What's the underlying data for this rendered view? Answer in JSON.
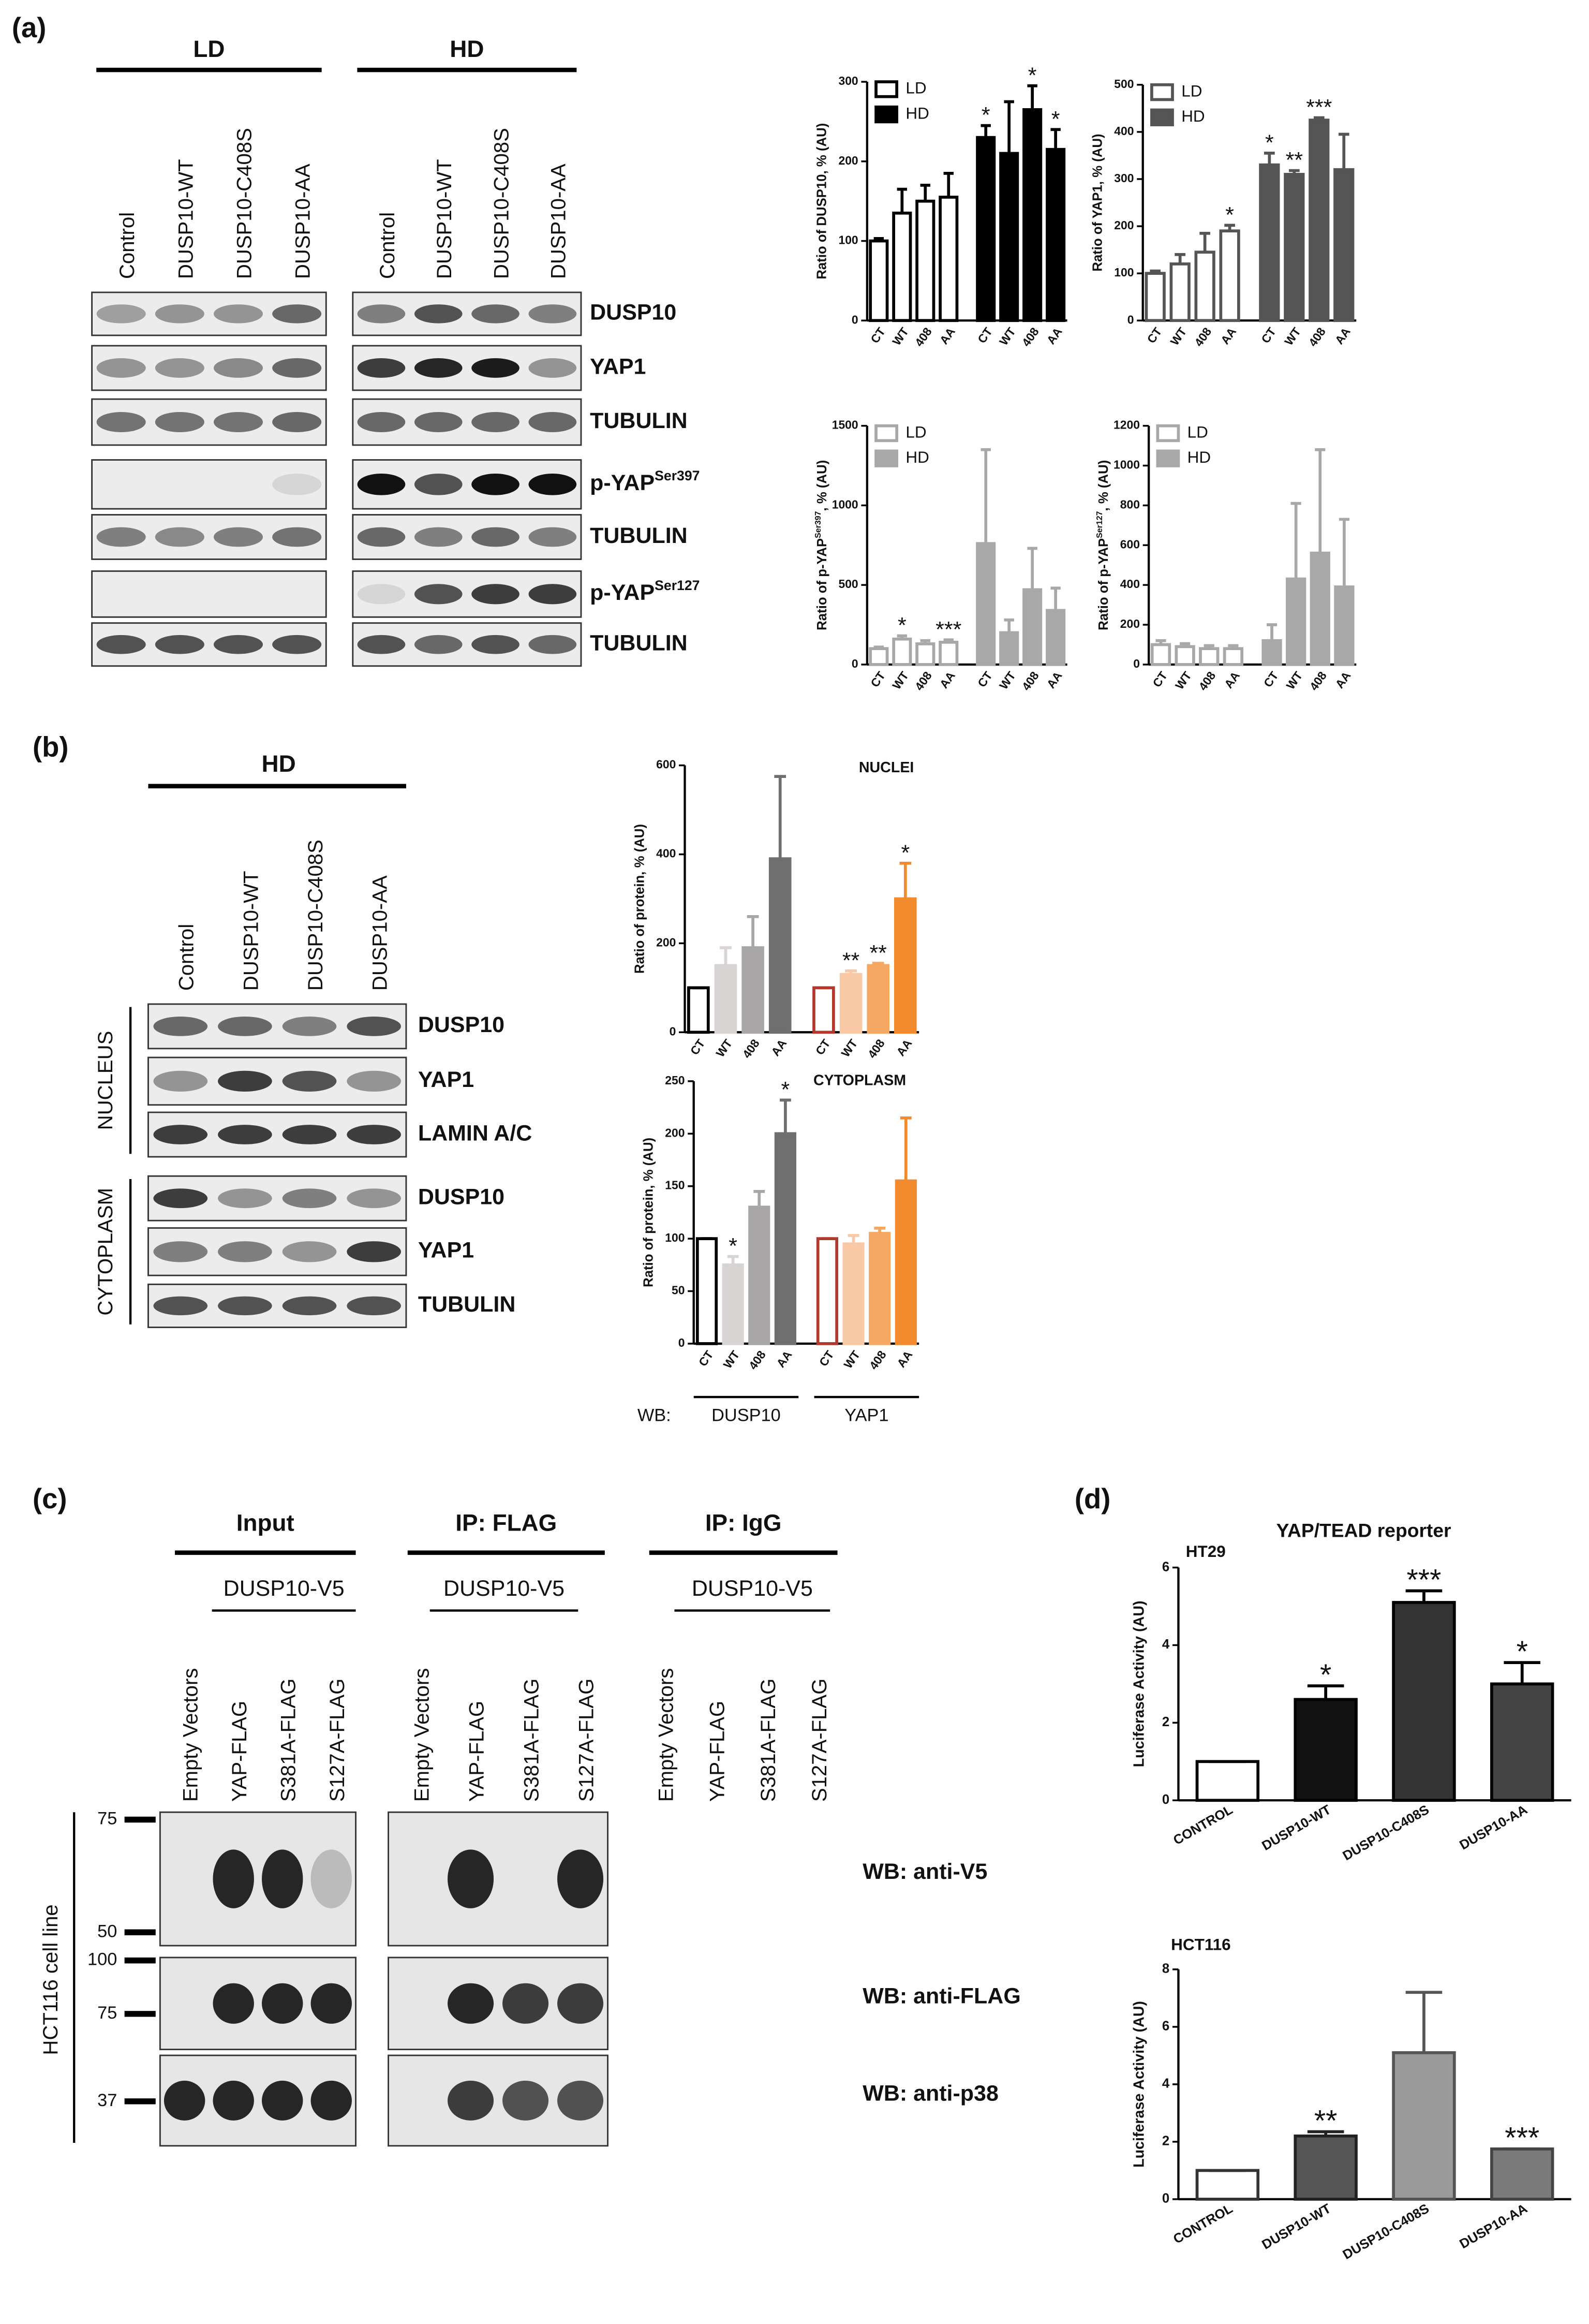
{
  "panel_labels": [
    "(a)",
    "(b)",
    "(c)",
    "(d)"
  ],
  "blot_a": {
    "headers": [
      "LD",
      "HD"
    ],
    "lanes": [
      "Control",
      "DUSP10-WT",
      "DUSP10-C408S",
      "DUSP10-AA"
    ],
    "rows": [
      "DUSP10",
      "YAP1",
      "TUBULIN",
      {
        "text": "p-YAP",
        "sup": "Ser397"
      },
      "TUBULIN",
      {
        "text": "p-YAP",
        "sup": "Ser127"
      },
      "TUBULIN"
    ]
  },
  "blot_b": {
    "header": "HD",
    "lanes": [
      "Control",
      "DUSP10-WT",
      "DUSP10-C408S",
      "DUSP10-AA"
    ],
    "fractions": [
      {
        "name": "NUCLEUS",
        "rows": [
          "DUSP10",
          "YAP1",
          "LAMIN A/C"
        ]
      },
      {
        "name": "CYTOPLASM",
        "rows": [
          "DUSP10",
          "YAP1",
          "TUBULIN"
        ]
      }
    ]
  },
  "blot_c": {
    "headers": [
      "Input",
      "IP: FLAG",
      "IP: IgG"
    ],
    "construct": "DUSP10-V5",
    "lanes": [
      "Empty Vectors",
      "YAP-FLAG",
      "S381A-FLAG",
      "S127A-FLAG"
    ],
    "rows": [
      "WB: anti-V5",
      "WB: anti-FLAG",
      "WB: anti-p38"
    ],
    "markers": [
      75,
      50,
      100,
      75,
      37
    ],
    "cell_line": "HCT116 cell line"
  },
  "chart_data": [
    {
      "type": "bar",
      "ylabel": "Ratio of DUSP10, % (AU)",
      "categories": [
        "CT",
        "WT",
        "408",
        "AA"
      ],
      "ylim": [
        0,
        300
      ],
      "yticks": [
        0,
        100,
        200,
        300
      ],
      "legend": "upper left",
      "series": [
        {
          "name": "LD",
          "color": "#000000",
          "fill": "#ffffff",
          "values": [
            100,
            135,
            150,
            155
          ],
          "errors": [
            3,
            30,
            20,
            30
          ],
          "stars": [
            null,
            null,
            null,
            null
          ]
        },
        {
          "name": "HD",
          "color": "#000000",
          "fill": "#000000",
          "values": [
            230,
            210,
            265,
            215
          ],
          "errors": [
            15,
            65,
            30,
            25
          ],
          "stars": [
            "*",
            null,
            "*",
            "*"
          ]
        }
      ]
    },
    {
      "type": "bar",
      "ylabel": "Ratio of YAP1, % (AU)",
      "categories": [
        "CT",
        "WT",
        "408",
        "AA"
      ],
      "ylim": [
        0,
        500
      ],
      "yticks": [
        0,
        100,
        200,
        300,
        400,
        500
      ],
      "legend": "upper left",
      "series": [
        {
          "name": "LD",
          "color": "#555555",
          "fill": "#ffffff",
          "values": [
            100,
            120,
            145,
            190
          ],
          "errors": [
            5,
            20,
            40,
            12
          ],
          "stars": [
            null,
            null,
            null,
            "*"
          ]
        },
        {
          "name": "HD",
          "color": "#555555",
          "fill": "#555555",
          "values": [
            330,
            310,
            425,
            320
          ],
          "errors": [
            25,
            8,
            5,
            75
          ],
          "stars": [
            "*",
            "**",
            "***",
            null
          ]
        }
      ]
    },
    {
      "type": "bar",
      "ylabel": {
        "text": "Ratio of p-YAP",
        "sup": "Ser397",
        "rest": ", % (AU)"
      },
      "categories": [
        "CT",
        "WT",
        "408",
        "AA"
      ],
      "ylim": [
        0,
        1500
      ],
      "yticks": [
        0,
        500,
        1000,
        1500
      ],
      "legend": "upper left",
      "series": [
        {
          "name": "LD",
          "color": "#a8a8a8",
          "fill": "#ffffff",
          "values": [
            100,
            160,
            130,
            140
          ],
          "errors": [
            10,
            20,
            20,
            15
          ],
          "stars": [
            null,
            "*",
            null,
            "***"
          ]
        },
        {
          "name": "HD",
          "color": "#a8a8a8",
          "fill": "#a8a8a8",
          "values": [
            760,
            200,
            470,
            340
          ],
          "errors": [
            590,
            80,
            260,
            140
          ],
          "stars": [
            null,
            null,
            null,
            null
          ]
        }
      ]
    },
    {
      "type": "bar",
      "ylabel": {
        "text": "Ratio of p-YAP",
        "sup": "Ser127",
        "rest": ", % (AU)"
      },
      "categories": [
        "CT",
        "WT",
        "408",
        "AA"
      ],
      "ylim": [
        0,
        1200
      ],
      "yticks": [
        0,
        200,
        400,
        600,
        800,
        1000,
        1200
      ],
      "legend": "upper left",
      "series": [
        {
          "name": "LD",
          "color": "#a8a8a8",
          "fill": "#ffffff",
          "values": [
            100,
            90,
            80,
            80
          ],
          "errors": [
            20,
            15,
            15,
            15
          ],
          "stars": [
            null,
            null,
            null,
            null
          ]
        },
        {
          "name": "HD",
          "color": "#a8a8a8",
          "fill": "#a8a8a8",
          "values": [
            120,
            430,
            560,
            390
          ],
          "errors": [
            80,
            380,
            520,
            340
          ],
          "stars": [
            null,
            null,
            null,
            null
          ]
        }
      ]
    },
    {
      "type": "bar",
      "title": "NUCLEI",
      "ylabel": "Ratio of protein, % (AU)",
      "categories": [
        "CT",
        "WT",
        "408",
        "AA"
      ],
      "ylim": [
        0,
        600
      ],
      "yticks": [
        0,
        200,
        400,
        600
      ],
      "series": [
        {
          "colors": [
            "#ffffff",
            "#d9d4d4",
            "#a8a6a6",
            "#6f6f6f"
          ],
          "edges": [
            "#000000",
            "#d9d4d4",
            "#a8a6a6",
            "#6f6f6f"
          ],
          "values": [
            100,
            150,
            190,
            390
          ],
          "errors": [
            0,
            40,
            70,
            185
          ],
          "stars": [
            null,
            null,
            null,
            null
          ]
        },
        {
          "colors": [
            "#ffffff",
            "#f9c9a6",
            "#f5a862",
            "#f28a2e"
          ],
          "edges": [
            "#b03a2e",
            "#f9c9a6",
            "#f5a862",
            "#f28a2e"
          ],
          "values": [
            100,
            130,
            150,
            300
          ],
          "errors": [
            0,
            8,
            5,
            80
          ],
          "stars": [
            null,
            "**",
            "**",
            "*"
          ]
        }
      ]
    },
    {
      "type": "bar",
      "title": "CYTOPLASM",
      "ylabel": "Ratio of protein, % (AU)",
      "xlabel": "WB:",
      "categories": [
        "CT",
        "WT",
        "408",
        "AA"
      ],
      "ylim": [
        0,
        250
      ],
      "yticks": [
        0,
        50,
        100,
        150,
        200,
        250
      ],
      "series": [
        {
          "name": "DUSP10",
          "colors": [
            "#ffffff",
            "#d9d4d4",
            "#a8a6a6",
            "#6f6f6f"
          ],
          "edges": [
            "#000000",
            "#d9d4d4",
            "#a8a6a6",
            "#6f6f6f"
          ],
          "values": [
            100,
            75,
            130,
            200
          ],
          "errors": [
            0,
            8,
            15,
            32
          ],
          "stars": [
            null,
            "*",
            null,
            "*"
          ]
        },
        {
          "name": "YAP1",
          "colors": [
            "#ffffff",
            "#f9c9a6",
            "#f5a862",
            "#f28a2e"
          ],
          "edges": [
            "#b03a2e",
            "#f9c9a6",
            "#f5a862",
            "#f28a2e"
          ],
          "values": [
            100,
            95,
            105,
            155
          ],
          "errors": [
            0,
            8,
            5,
            60
          ],
          "stars": [
            null,
            null,
            null,
            null
          ]
        }
      ]
    },
    {
      "type": "bar",
      "title": "YAP/TEAD reporter",
      "subtitle": "HT29",
      "ylabel": "Luciferase Activity (AU)",
      "categories": [
        "CONTROL",
        "DUSP10-WT",
        "DUSP10-C408S",
        "DUSP10-AA"
      ],
      "ylim": [
        0,
        6
      ],
      "yticks": [
        0,
        2,
        4,
        6
      ],
      "series": [
        {
          "colors": [
            "#ffffff",
            "#111111",
            "#333333",
            "#444444"
          ],
          "edges": [
            "#000000",
            "#000000",
            "#000000",
            "#000000"
          ],
          "values": [
            1,
            2.6,
            5.1,
            3.0
          ],
          "errors": [
            0,
            0.35,
            0.3,
            0.55
          ],
          "stars": [
            null,
            "*",
            "***",
            "*"
          ]
        }
      ]
    },
    {
      "type": "bar",
      "subtitle": "HCT116",
      "ylabel": "Luciferase Activity (AU)",
      "categories": [
        "CONTROL",
        "DUSP10-WT",
        "DUSP10-C408S",
        "DUSP10-AA"
      ],
      "ylim": [
        0,
        8
      ],
      "yticks": [
        0,
        2,
        4,
        6,
        8
      ],
      "series": [
        {
          "colors": [
            "#ffffff",
            "#555555",
            "#9a9a9a",
            "#7a7a7a"
          ],
          "edges": [
            "#333333",
            "#222222",
            "#555555",
            "#444444"
          ],
          "values": [
            1,
            2.2,
            5.1,
            1.75
          ],
          "errors": [
            0,
            0.15,
            2.1,
            0
          ],
          "stars": [
            null,
            "**",
            null,
            "***"
          ]
        }
      ]
    }
  ]
}
